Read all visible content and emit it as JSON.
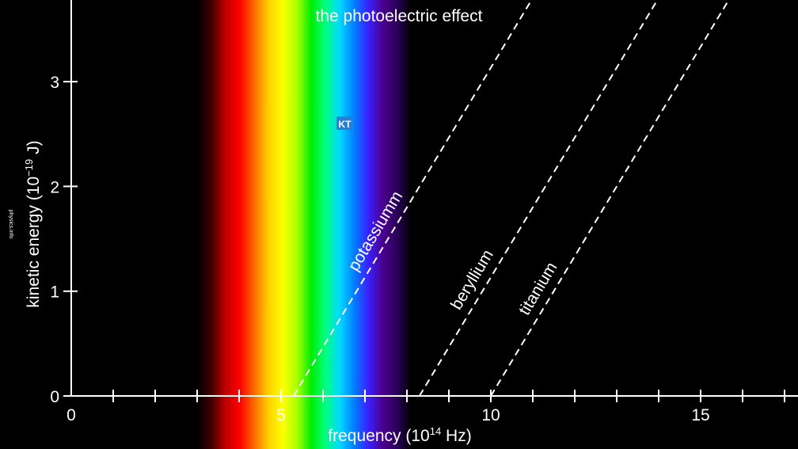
{
  "chart_data": {
    "type": "line",
    "title": "the photoelectric effect",
    "xlabel": {
      "main": "frequency (10",
      "sup": "14",
      "rest": " Hz)"
    },
    "ylabel": {
      "main": "kinetic energy (10",
      "sup": "−19",
      "rest": " J)"
    },
    "xlim": [
      0,
      17.3
    ],
    "ylim": [
      0,
      3.8
    ],
    "x_ticks": [
      0,
      5,
      10,
      15
    ],
    "x_tick_labels": [
      "0",
      "5",
      "10",
      "15"
    ],
    "x_minor_step": 1,
    "y_ticks": [
      0,
      1,
      2,
      3
    ],
    "y_tick_labels": [
      "0",
      "1",
      "2",
      "3"
    ],
    "grid": false,
    "series": [
      {
        "name": "potassiumm",
        "threshold": 5.3,
        "x": [
          5.3,
          11.0
        ],
        "y": [
          0,
          3.8
        ]
      },
      {
        "name": "beryllium",
        "threshold": 8.3,
        "x": [
          8.3,
          14.0
        ],
        "y": [
          0,
          3.8
        ]
      },
      {
        "name": "titanium",
        "threshold": 10.0,
        "x": [
          10.0,
          15.7
        ],
        "y": [
          0,
          3.8
        ]
      }
    ],
    "spectrum_band": {
      "x_range": [
        3.0,
        8.1
      ],
      "colors": [
        "#000000",
        "#400000",
        "#c00000",
        "#ff0000",
        "#ff6a00",
        "#ffd000",
        "#ffff00",
        "#aaff00",
        "#00ee00",
        "#00ff80",
        "#00d8ff",
        "#0080ff",
        "#3a20ff",
        "#4b0090",
        "#2a005a",
        "#000000"
      ]
    }
  },
  "badge": {
    "text": "KT",
    "color": "#2a7fd4"
  },
  "watermark": "physics.info"
}
